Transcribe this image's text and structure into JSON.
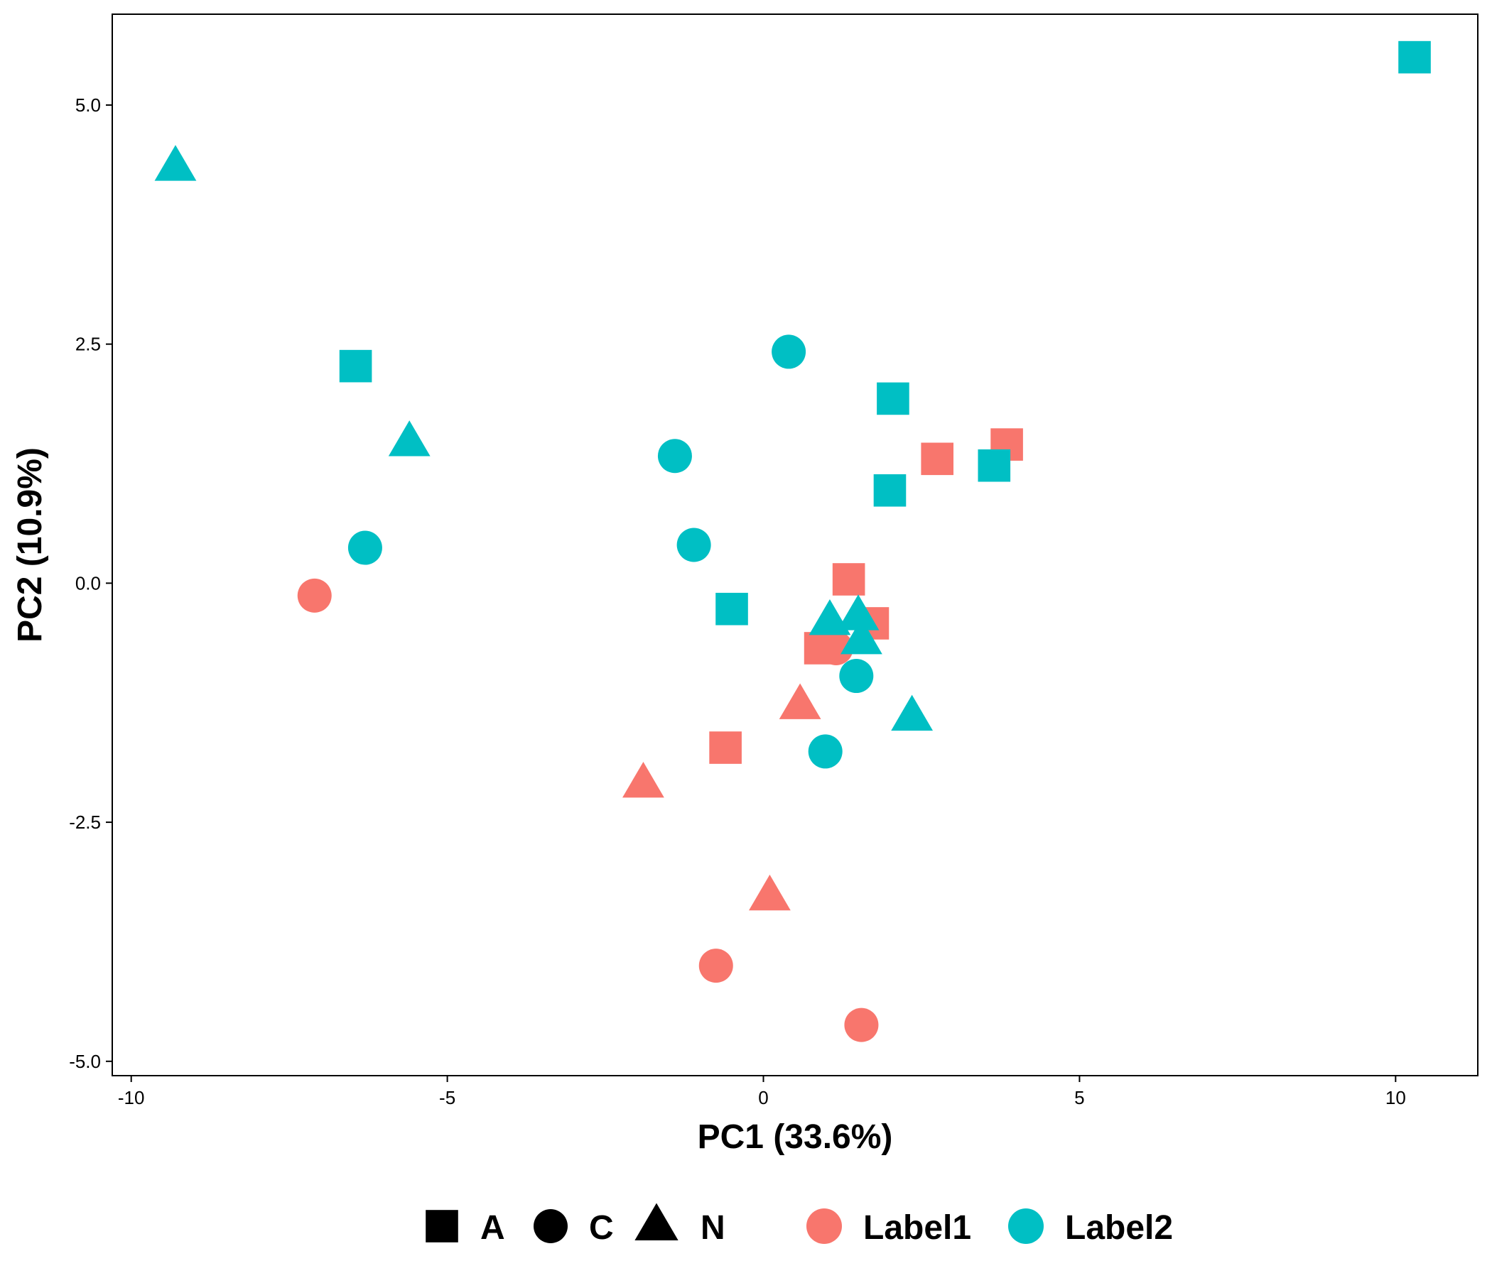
{
  "chart_data": {
    "type": "scatter",
    "title": "",
    "xlabel": "PC1 (33.6%)",
    "ylabel": "PC2 (10.9%)",
    "xlim": [
      -10.3,
      11.3
    ],
    "ylim": [
      -5.15,
      5.95
    ],
    "x_ticks": [
      -10,
      -5,
      0,
      5,
      10
    ],
    "x_tick_labels": [
      "-10",
      "-5",
      "0",
      "5",
      "10"
    ],
    "y_ticks": [
      -5,
      -2.5,
      0,
      2.5,
      5
    ],
    "y_tick_labels": [
      "-5.0",
      "-2.5",
      "0.0",
      "2.5",
      "5.0"
    ],
    "grid": false,
    "legend_placement": "bottom",
    "shape_legend": [
      {
        "label": "A",
        "shape": "square"
      },
      {
        "label": "C",
        "shape": "circle"
      },
      {
        "label": "N",
        "shape": "triangle"
      }
    ],
    "color_legend": [
      {
        "label": "Label1",
        "color": "#F8766D"
      },
      {
        "label": "Label2",
        "color": "#00BFC4"
      }
    ],
    "series": [
      {
        "name": "Label1",
        "color": "#F8766D",
        "points": [
          {
            "x": -7.1,
            "y": -0.13,
            "shape": "C"
          },
          {
            "x": -0.75,
            "y": -4.0,
            "shape": "C"
          },
          {
            "x": 1.55,
            "y": -4.62,
            "shape": "C"
          },
          {
            "x": 1.15,
            "y": -0.68,
            "shape": "C"
          },
          {
            "x": 0.9,
            "y": -0.68,
            "shape": "A"
          },
          {
            "x": 1.35,
            "y": 0.04,
            "shape": "A"
          },
          {
            "x": 1.73,
            "y": -0.42,
            "shape": "A"
          },
          {
            "x": -0.6,
            "y": -1.72,
            "shape": "A"
          },
          {
            "x": 2.75,
            "y": 1.3,
            "shape": "A"
          },
          {
            "x": 3.85,
            "y": 1.45,
            "shape": "A"
          },
          {
            "x": 0.58,
            "y": -1.28,
            "shape": "N"
          },
          {
            "x": -1.9,
            "y": -2.1,
            "shape": "N"
          },
          {
            "x": 0.1,
            "y": -3.28,
            "shape": "N"
          }
        ]
      },
      {
        "name": "Label2",
        "color": "#00BFC4",
        "points": [
          {
            "x": -6.3,
            "y": 0.37,
            "shape": "C"
          },
          {
            "x": -1.4,
            "y": 1.33,
            "shape": "C"
          },
          {
            "x": -1.1,
            "y": 0.4,
            "shape": "C"
          },
          {
            "x": 0.4,
            "y": 2.42,
            "shape": "C"
          },
          {
            "x": 1.47,
            "y": -0.97,
            "shape": "C"
          },
          {
            "x": 0.98,
            "y": -1.76,
            "shape": "C"
          },
          {
            "x": -6.45,
            "y": 2.27,
            "shape": "A"
          },
          {
            "x": -0.5,
            "y": -0.27,
            "shape": "A"
          },
          {
            "x": 2.05,
            "y": 1.93,
            "shape": "A"
          },
          {
            "x": 2.0,
            "y": 0.97,
            "shape": "A"
          },
          {
            "x": 3.65,
            "y": 1.23,
            "shape": "A"
          },
          {
            "x": 10.3,
            "y": 5.5,
            "shape": "A"
          },
          {
            "x": -9.3,
            "y": 4.35,
            "shape": "N"
          },
          {
            "x": -5.6,
            "y": 1.47,
            "shape": "N"
          },
          {
            "x": 1.05,
            "y": -0.4,
            "shape": "N"
          },
          {
            "x": 1.5,
            "y": -0.35,
            "shape": "N"
          },
          {
            "x": 1.55,
            "y": -0.6,
            "shape": "N"
          },
          {
            "x": 2.35,
            "y": -1.4,
            "shape": "N"
          }
        ]
      }
    ]
  }
}
